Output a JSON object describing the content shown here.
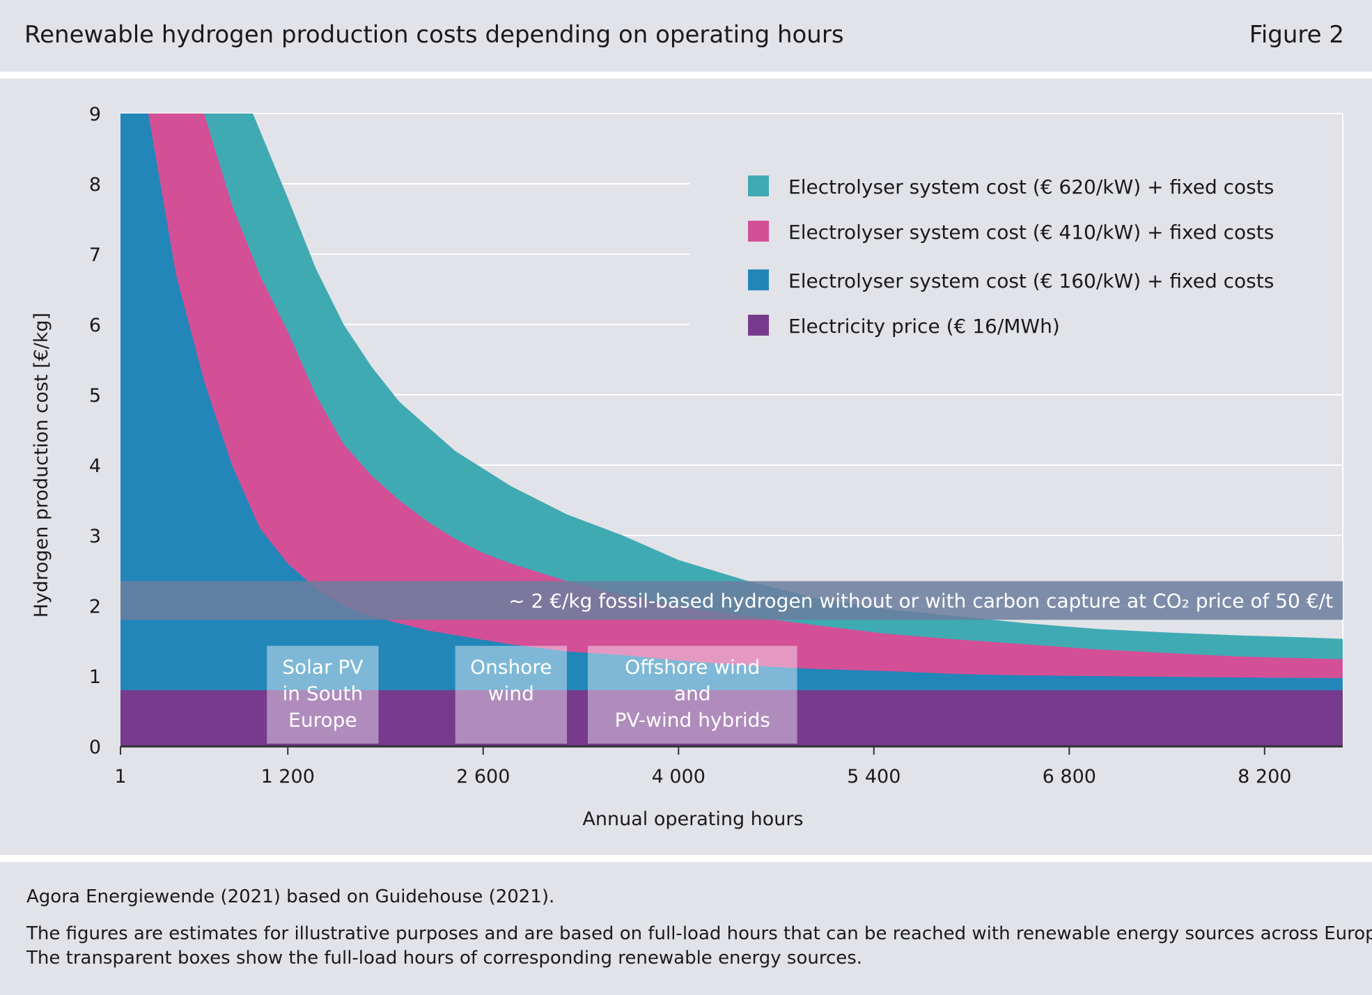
{
  "header": {
    "title": "Renewable hydrogen production costs depending on operating hours",
    "figure_label": "Figure 2"
  },
  "colors": {
    "panel_bg": "#e2e3e8",
    "electricity": "#773a8d",
    "sys160": "#2286b9",
    "sys410": "#d35097",
    "sys620": "#40aab3",
    "fossil_band": "#6b7e9e",
    "box": "#ffffff",
    "grid": "#ffffff"
  },
  "chart_data": {
    "type": "area",
    "xlabel": "Annual operating hours",
    "ylabel": "Hydrogen production cost [€/kg]",
    "xlim": [
      1,
      8760
    ],
    "ylim": [
      0,
      9
    ],
    "x_ticks": [
      {
        "value": 1,
        "label": "1"
      },
      {
        "value": 1200,
        "label": "1 200"
      },
      {
        "value": 2600,
        "label": "2 600"
      },
      {
        "value": 4000,
        "label": "4 000"
      },
      {
        "value": 5400,
        "label": "5 400"
      },
      {
        "value": 6800,
        "label": "6 800"
      },
      {
        "value": 8200,
        "label": "8 200"
      }
    ],
    "y_ticks": [
      0,
      1,
      2,
      3,
      4,
      5,
      6,
      7,
      8,
      9
    ],
    "grid": true,
    "legend_position": "top-right",
    "stacked": true,
    "series": [
      {
        "name": "Electricity price (€ 16/MWh)",
        "color": "#773a8d",
        "points": [
          [
            1,
            0.8
          ],
          [
            8760,
            0.8
          ]
        ]
      },
      {
        "name": "Electrolyser system cost (€ 160/kW) + fixed costs",
        "color": "#2286b9",
        "points": [
          [
            1,
            9
          ],
          [
            200,
            9
          ],
          [
            400,
            6.7
          ],
          [
            600,
            5.2
          ],
          [
            800,
            4.0
          ],
          [
            1000,
            3.1
          ],
          [
            1200,
            2.6
          ],
          [
            1400,
            2.25
          ],
          [
            1600,
            2.0
          ],
          [
            1800,
            1.85
          ],
          [
            2000,
            1.75
          ],
          [
            2200,
            1.65
          ],
          [
            2500,
            1.55
          ],
          [
            2800,
            1.45
          ],
          [
            3200,
            1.35
          ],
          [
            3600,
            1.3
          ],
          [
            4000,
            1.22
          ],
          [
            4500,
            1.15
          ],
          [
            5000,
            1.1
          ],
          [
            5500,
            1.07
          ],
          [
            6000,
            1.03
          ],
          [
            6500,
            1.01
          ],
          [
            7000,
            1.0
          ],
          [
            7500,
            0.99
          ],
          [
            8000,
            0.98
          ],
          [
            8760,
            0.97
          ]
        ]
      },
      {
        "name": "Electrolyser system cost (€ 410/kW) + fixed costs",
        "color": "#d35097",
        "points": [
          [
            1,
            9
          ],
          [
            600,
            9
          ],
          [
            800,
            7.7
          ],
          [
            1000,
            6.7
          ],
          [
            1200,
            5.9
          ],
          [
            1400,
            5.0
          ],
          [
            1600,
            4.3
          ],
          [
            1800,
            3.85
          ],
          [
            2000,
            3.5
          ],
          [
            2200,
            3.2
          ],
          [
            2400,
            2.95
          ],
          [
            2600,
            2.75
          ],
          [
            2800,
            2.6
          ],
          [
            3200,
            2.35
          ],
          [
            3600,
            2.15
          ],
          [
            4000,
            2.0
          ],
          [
            4500,
            1.85
          ],
          [
            5000,
            1.72
          ],
          [
            5500,
            1.6
          ],
          [
            6000,
            1.52
          ],
          [
            6500,
            1.45
          ],
          [
            7000,
            1.38
          ],
          [
            7500,
            1.33
          ],
          [
            8000,
            1.28
          ],
          [
            8760,
            1.24
          ]
        ]
      },
      {
        "name": "Electrolyser system cost (€ 620/kW) + fixed costs",
        "color": "#40aab3",
        "points": [
          [
            1,
            9
          ],
          [
            950,
            9
          ],
          [
            1200,
            7.8
          ],
          [
            1400,
            6.8
          ],
          [
            1600,
            6.0
          ],
          [
            1800,
            5.4
          ],
          [
            2000,
            4.9
          ],
          [
            2400,
            4.2
          ],
          [
            2800,
            3.7
          ],
          [
            3200,
            3.3
          ],
          [
            3600,
            3.0
          ],
          [
            4000,
            2.65
          ],
          [
            4500,
            2.35
          ],
          [
            5000,
            2.1
          ],
          [
            5500,
            1.95
          ],
          [
            6000,
            1.85
          ],
          [
            6500,
            1.75
          ],
          [
            7000,
            1.67
          ],
          [
            7500,
            1.62
          ],
          [
            8000,
            1.58
          ],
          [
            8500,
            1.55
          ],
          [
            8760,
            1.53
          ]
        ]
      }
    ],
    "annotations": {
      "fossil_band": {
        "range": [
          1.8,
          2.35
        ],
        "label": "~ 2 €/kg fossil-based hydrogen without or with carbon capture at CO₂ price of 50 €/t"
      },
      "boxes": [
        {
          "name": "solar",
          "x_range": [
            1200,
            2000
          ],
          "lines": [
            "Solar PV",
            "in South",
            "Europe"
          ]
        },
        {
          "name": "onshore",
          "x_range": [
            2400,
            3200
          ],
          "lines": [
            "Onshore",
            "wind"
          ]
        },
        {
          "name": "offshore",
          "x_range": [
            3350,
            4850
          ],
          "lines": [
            "Offshore wind",
            "and",
            "PV-wind hybrids"
          ]
        }
      ]
    }
  },
  "footer": {
    "source": "Agora Energiewende (2021) based on Guidehouse (2021).",
    "note_lines": [
      "The figures are estimates for illustrative purposes and are based on full-load hours that can be reached with renewable energy sources across Europe.",
      "The transparent boxes show the full-load hours of corresponding renewable energy sources."
    ]
  }
}
